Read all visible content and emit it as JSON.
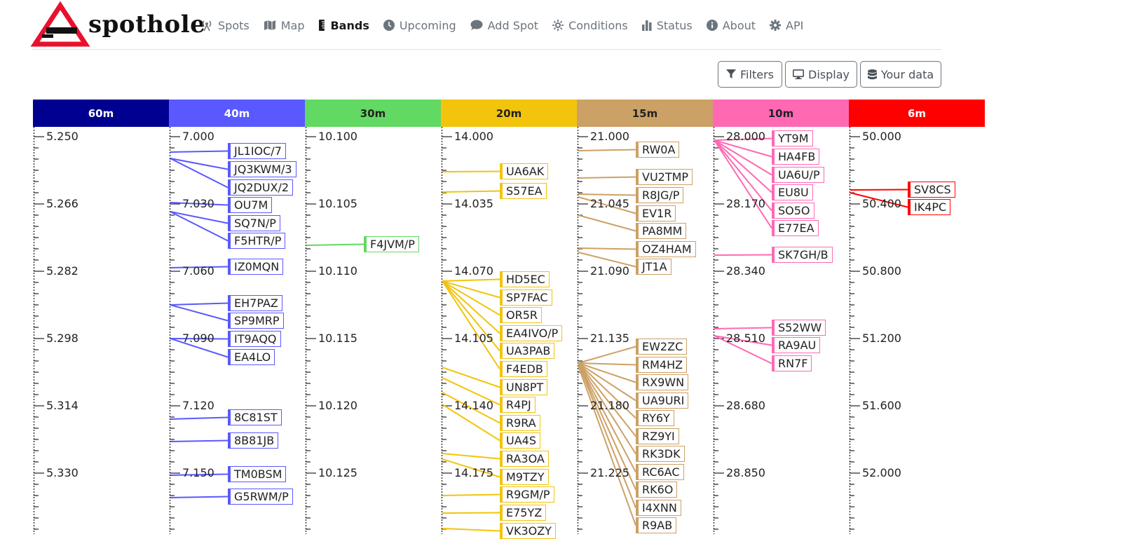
{
  "app": {
    "name": "spothole",
    "nav": [
      {
        "label": "Spots",
        "icon": "tower-broadcast-icon",
        "active": false
      },
      {
        "label": "Map",
        "icon": "map-icon",
        "active": false
      },
      {
        "label": "Bands",
        "icon": "ruler-vertical-icon",
        "active": true
      },
      {
        "label": "Upcoming",
        "icon": "clock-icon",
        "active": false
      },
      {
        "label": "Add Spot",
        "icon": "comment-icon",
        "active": false
      },
      {
        "label": "Conditions",
        "icon": "sun-icon",
        "active": false
      },
      {
        "label": "Status",
        "icon": "chart-bar-icon",
        "active": false
      },
      {
        "label": "About",
        "icon": "info-circle-icon",
        "active": false
      },
      {
        "label": "API",
        "icon": "gear-icon",
        "active": false
      }
    ]
  },
  "toolbar": {
    "filters_label": "Filters",
    "display_label": "Display",
    "your_data_label": "Your data"
  },
  "bands": [
    {
      "name": "60m",
      "color": "#000090",
      "text_color": "#ffffff",
      "ticks": [
        "5.250",
        "5.266",
        "5.282",
        "5.298",
        "5.314",
        "5.330"
      ],
      "spots": []
    },
    {
      "name": "40m",
      "color": "#5959ff",
      "text_color": "#ffffff",
      "ticks": [
        "7.000",
        "7.030",
        "7.060",
        "7.090",
        "7.120",
        "7.150"
      ],
      "spots": [
        "JL1IOC/7",
        "JQ3KWM/3",
        "JQ2DUX/2",
        "OU7M",
        "SQ7N/P",
        "F5HTR/P",
        "IZ0MQN",
        "EH7PAZ",
        "SP9MRP",
        "IT9AQQ",
        "EA4LO",
        "8C81ST",
        "8B81JB",
        "TM0BSM",
        "G5RWM/P"
      ]
    },
    {
      "name": "30m",
      "color": "#62d962",
      "text_color": "#222222",
      "ticks": [
        "10.100",
        "10.105",
        "10.110",
        "10.115",
        "10.120",
        "10.125"
      ],
      "spots": [
        "F4JVM/P"
      ]
    },
    {
      "name": "20m",
      "color": "#f2c40c",
      "text_color": "#222222",
      "ticks": [
        "14.000",
        "14.035",
        "14.070",
        "14.105",
        "14.140",
        "14.175"
      ],
      "spots": [
        "UA6AK",
        "S57EA",
        "HD5EC",
        "SP7FAC",
        "OR5R",
        "EA4IVO/P",
        "UA3PAB",
        "F4EDB",
        "UN8PT",
        "R4PJ",
        "R9RA",
        "UA4S",
        "RA3OA",
        "M9TZY",
        "R9GM/P",
        "E75YZ",
        "VK3OZY"
      ]
    },
    {
      "name": "15m",
      "color": "#cca166",
      "text_color": "#222222",
      "ticks": [
        "21.000",
        "21.045",
        "21.090",
        "21.135",
        "21.180",
        "21.225"
      ],
      "spots": [
        "RW0A",
        "VU2TMP",
        "R8JG/P",
        "EV1R",
        "PA8MM",
        "OZ4HAM",
        "JT1A",
        "EW2ZC",
        "RM4HZ",
        "RX9WN",
        "UA9URI",
        "RY6Y",
        "RZ9YI",
        "RK3DK",
        "RC6AC",
        "RK6O",
        "I4XNN",
        "R9AB"
      ]
    },
    {
      "name": "10m",
      "color": "#ff69b4",
      "text_color": "#222222",
      "ticks": [
        "28.000",
        "28.170",
        "28.340",
        "28.510",
        "28.680",
        "28.850"
      ],
      "spots": [
        "YT9M",
        "HA4FB",
        "UA6U/P",
        "EU8U",
        "SO5O",
        "E77EA",
        "SK7GH/B",
        "S52WW",
        "RA9AU",
        "RN7F"
      ]
    },
    {
      "name": "6m",
      "color": "#ff0000",
      "text_color": "#ffffff",
      "ticks": [
        "50.000",
        "50.400",
        "50.800",
        "51.200",
        "51.600",
        "52.000"
      ],
      "spots": [
        "SV8CS",
        "IK4PC"
      ]
    }
  ]
}
